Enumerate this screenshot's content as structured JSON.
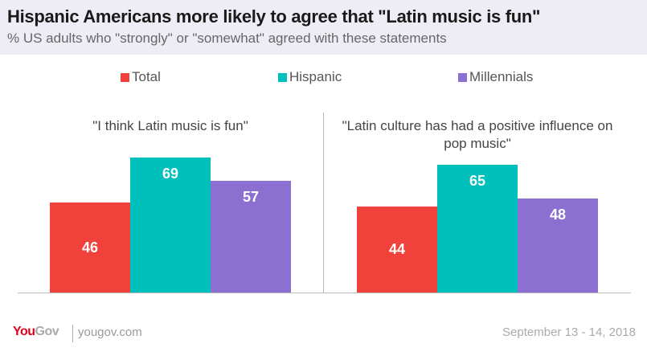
{
  "title": "Hispanic Americans more likely to agree that \"Latin music is fun\"",
  "subtitle": "% US adults who \"strongly\" or \"somewhat\" agreed with these statements",
  "footer": {
    "logo": "YouGov",
    "url": "yougov.com",
    "date": "September 13 - 14, 2018"
  },
  "chart_data": {
    "type": "bar",
    "categories": [
      "\"I think Latin music is fun\"",
      "\"Latin culture has had a positive influence on pop music\""
    ],
    "series": [
      {
        "name": "Total",
        "color": "#f0413a",
        "values": [
          46,
          44
        ]
      },
      {
        "name": "Hispanic",
        "color": "#00c0bc",
        "values": [
          69,
          65
        ]
      },
      {
        "name": "Millennials",
        "color": "#8b6fd1",
        "values": [
          57,
          48
        ]
      }
    ],
    "ylim": [
      0,
      100
    ],
    "grid": false,
    "legend": "top"
  }
}
